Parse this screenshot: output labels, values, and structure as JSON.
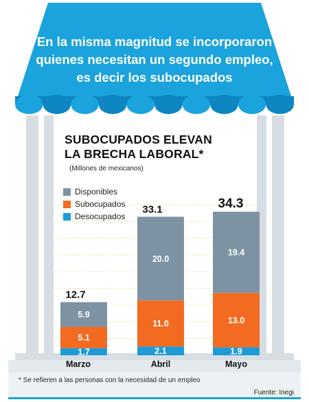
{
  "banner": {
    "lines": [
      "En la misma magnitud se incorporaron",
      "quienes necesitan un segundo empleo,",
      "es decir los subocupados"
    ]
  },
  "colors": {
    "awning_blue": "#1aa3dd",
    "awning_dark": "#0d86c2",
    "column": "#d6dde3",
    "disponibles": "#7d93a4",
    "subocupados": "#f26b21",
    "desocupados": "#1e9bd7",
    "gridline": "#d9d36a"
  },
  "chart_data": {
    "type": "bar",
    "stacked": true,
    "title_lines": [
      "SUBOCUPADOS ELEVAN",
      "LA BRECHA LABORAL*"
    ],
    "subtitle": "(Millones de mexicanos)",
    "categories": [
      "Marzo",
      "Abril",
      "Mayo"
    ],
    "series": [
      {
        "name": "Desocupados",
        "color": "#1e9bd7",
        "values": [
          1.7,
          2.1,
          1.9
        ],
        "labels": [
          "1.7",
          "2.1",
          "1.9"
        ]
      },
      {
        "name": "Subocupados",
        "color": "#f26b21",
        "values": [
          5.1,
          11.0,
          13.0
        ],
        "labels": [
          "5.1",
          "11.0",
          "13.0"
        ]
      },
      {
        "name": "Disponibles",
        "color": "#7d93a4",
        "values": [
          5.9,
          20.0,
          19.4
        ],
        "labels": [
          "5.9",
          "20.0",
          "19.4"
        ]
      }
    ],
    "totals": [
      "12.7",
      "33.1",
      "34.3"
    ],
    "legend_order": [
      "Disponibles",
      "Subocupados",
      "Desocupados"
    ],
    "legend_position": "top-left",
    "ylim": [
      0,
      36
    ],
    "grid": true
  },
  "footnote": "* Se refieren a las personas con la necesidad de un empleo",
  "source": "Fuente: Inegi"
}
